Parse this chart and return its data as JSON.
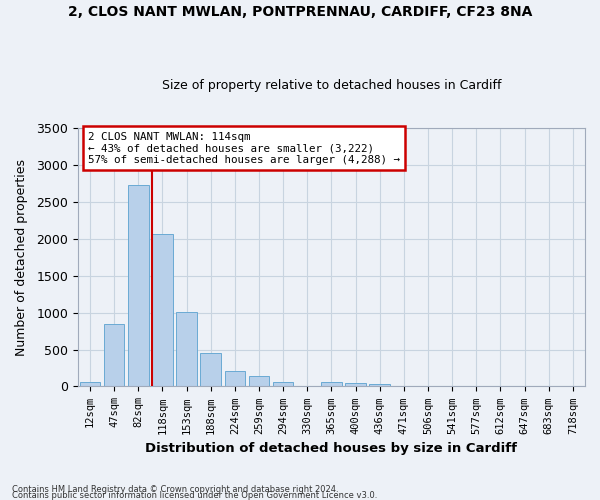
{
  "title": "2, CLOS NANT MWLAN, PONTPRENNAU, CARDIFF, CF23 8NA",
  "subtitle": "Size of property relative to detached houses in Cardiff",
  "xlabel": "Distribution of detached houses by size in Cardiff",
  "ylabel": "Number of detached properties",
  "bar_color": "#b8d0ea",
  "bar_edge_color": "#6aaad4",
  "grid_color": "#c8d4e0",
  "background_color": "#edf1f7",
  "categories": [
    "12sqm",
    "47sqm",
    "82sqm",
    "118sqm",
    "153sqm",
    "188sqm",
    "224sqm",
    "259sqm",
    "294sqm",
    "330sqm",
    "365sqm",
    "400sqm",
    "436sqm",
    "471sqm",
    "506sqm",
    "541sqm",
    "577sqm",
    "612sqm",
    "647sqm",
    "683sqm",
    "718sqm"
  ],
  "values": [
    55,
    850,
    2730,
    2070,
    1010,
    455,
    210,
    145,
    65,
    0,
    55,
    40,
    30,
    0,
    0,
    0,
    0,
    0,
    0,
    0,
    0
  ],
  "ylim": [
    0,
    3500
  ],
  "yticks": [
    0,
    500,
    1000,
    1500,
    2000,
    2500,
    3000,
    3500
  ],
  "property_bar_idx": 3,
  "annotation_line1": "2 CLOS NANT MWLAN: 114sqm",
  "annotation_line2": "← 43% of detached houses are smaller (3,222)",
  "annotation_line3": "57% of semi-detached houses are larger (4,288) →",
  "annotation_box_color": "#ffffff",
  "annotation_box_edge_color": "#cc0000",
  "red_line_color": "#cc0000",
  "footnote1": "Contains HM Land Registry data © Crown copyright and database right 2024.",
  "footnote2": "Contains public sector information licensed under the Open Government Licence v3.0."
}
